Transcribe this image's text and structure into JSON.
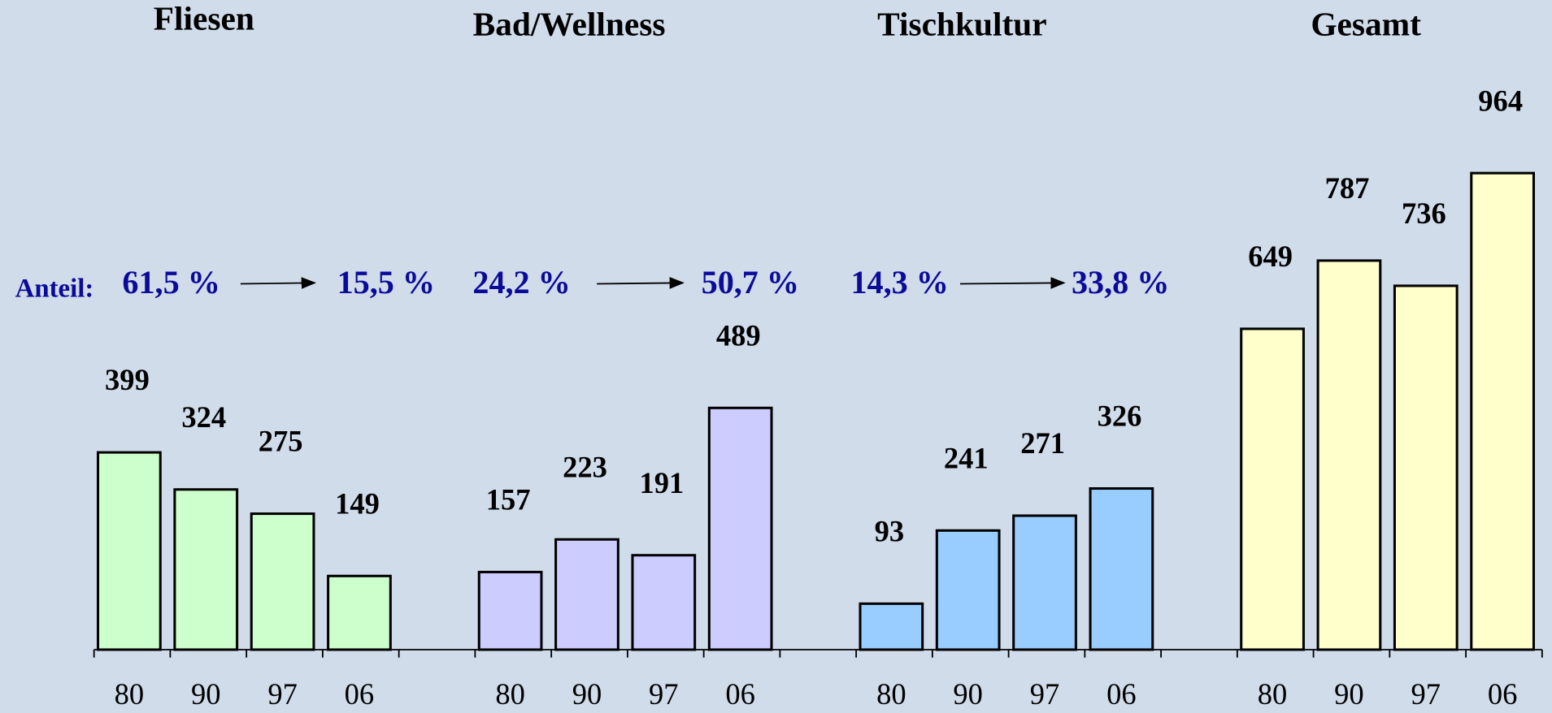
{
  "chart_data": [
    {
      "type": "bar",
      "title": "Fliesen",
      "categories": [
        "80",
        "90",
        "97",
        "06"
      ],
      "values": [
        399,
        324,
        275,
        149
      ],
      "color": "#ccffcc",
      "ylim": [
        0,
        1000
      ]
    },
    {
      "type": "bar",
      "title": "Bad/Wellness",
      "categories": [
        "80",
        "90",
        "97",
        "06"
      ],
      "values": [
        157,
        223,
        191,
        489
      ],
      "color": "#ccccff",
      "ylim": [
        0,
        1000
      ]
    },
    {
      "type": "bar",
      "title": "Tischkultur",
      "categories": [
        "80",
        "90",
        "97",
        "06"
      ],
      "values": [
        93,
        241,
        271,
        326
      ],
      "color": "#99ccff",
      "ylim": [
        0,
        1000
      ]
    },
    {
      "type": "bar",
      "title": "Gesamt",
      "categories": [
        "80",
        "90",
        "97",
        "06"
      ],
      "values": [
        649,
        787,
        736,
        964
      ],
      "color": "#ffffcc",
      "ylim": [
        0,
        1000
      ]
    }
  ],
  "annotation": {
    "label": "Anteil:",
    "shares": [
      [
        "61,5 %",
        "15,5 %"
      ],
      [
        "24,2 %",
        "50,7 %"
      ],
      [
        "14,3 %",
        "33,8 %"
      ]
    ]
  }
}
